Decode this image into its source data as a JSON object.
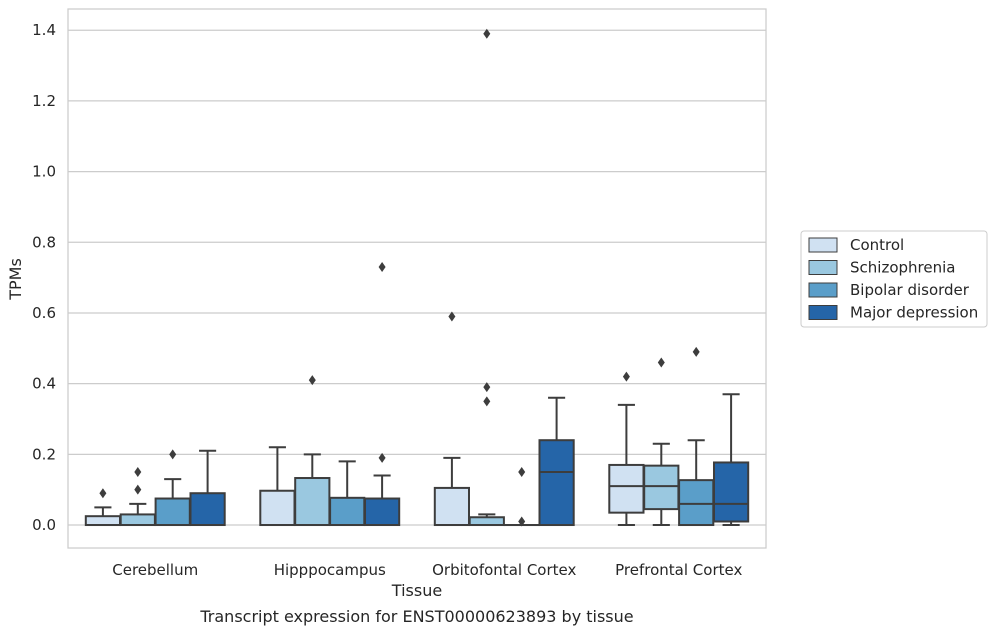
{
  "chart_data": {
    "type": "box",
    "xlabel": "Tissue",
    "ylabel": "TPMs",
    "caption": "Transcript expression for ENST00000623893 by tissue",
    "ylim": [
      -0.065,
      1.46
    ],
    "yticks": [
      0.0,
      0.2,
      0.4,
      0.6,
      0.8,
      1.0,
      1.2,
      1.4
    ],
    "ytick_labels": [
      "0.0",
      "0.2",
      "0.4",
      "0.6",
      "0.8",
      "1.0",
      "1.2",
      "1.4"
    ],
    "grid": true,
    "legend_position": "right, outside plot",
    "categories": [
      "Cerebellum",
      "Hipppocampus",
      "Orbitofontal Cortex",
      "Prefrontal Cortex"
    ],
    "series": [
      {
        "name": "Control",
        "color": "#d0e1f2",
        "boxes": [
          {
            "q1": 0.0,
            "median": 0.0,
            "q3": 0.025,
            "whisker_low": 0.0,
            "whisker_high": 0.05,
            "outliers": [
              0.09
            ]
          },
          {
            "q1": 0.0,
            "median": 0.0,
            "q3": 0.097,
            "whisker_low": 0.0,
            "whisker_high": 0.22,
            "outliers": []
          },
          {
            "q1": 0.0,
            "median": 0.0,
            "q3": 0.105,
            "whisker_low": 0.0,
            "whisker_high": 0.19,
            "outliers": [
              0.59
            ]
          },
          {
            "q1": 0.035,
            "median": 0.11,
            "q3": 0.17,
            "whisker_low": 0.0,
            "whisker_high": 0.34,
            "outliers": [
              0.42
            ]
          }
        ]
      },
      {
        "name": "Schizophrenia",
        "color": "#9ac8e0",
        "boxes": [
          {
            "q1": 0.0,
            "median": 0.0,
            "q3": 0.03,
            "whisker_low": 0.0,
            "whisker_high": 0.06,
            "outliers": [
              0.1,
              0.15
            ]
          },
          {
            "q1": 0.0,
            "median": 0.0,
            "q3": 0.133,
            "whisker_low": 0.0,
            "whisker_high": 0.2,
            "outliers": [
              0.41
            ]
          },
          {
            "q1": 0.0,
            "median": 0.0,
            "q3": 0.022,
            "whisker_low": 0.0,
            "whisker_high": 0.03,
            "outliers": [
              0.35,
              0.39,
              1.39
            ]
          },
          {
            "q1": 0.045,
            "median": 0.11,
            "q3": 0.168,
            "whisker_low": 0.0,
            "whisker_high": 0.23,
            "outliers": [
              0.46
            ]
          }
        ]
      },
      {
        "name": "Bipolar disorder",
        "color": "#5a9ec9",
        "boxes": [
          {
            "q1": 0.0,
            "median": 0.0,
            "q3": 0.075,
            "whisker_low": 0.0,
            "whisker_high": 0.13,
            "outliers": [
              0.2
            ]
          },
          {
            "q1": 0.0,
            "median": 0.0,
            "q3": 0.077,
            "whisker_low": 0.0,
            "whisker_high": 0.18,
            "outliers": []
          },
          {
            "q1": 0.0,
            "median": 0.0,
            "q3": 0.0,
            "whisker_low": 0.0,
            "whisker_high": 0.0,
            "outliers": [
              0.01,
              0.15
            ]
          },
          {
            "q1": 0.0,
            "median": 0.06,
            "q3": 0.127,
            "whisker_low": 0.0,
            "whisker_high": 0.24,
            "outliers": [
              0.49
            ]
          }
        ]
      },
      {
        "name": "Major depression",
        "color": "#2565a8",
        "boxes": [
          {
            "q1": 0.0,
            "median": 0.0,
            "q3": 0.09,
            "whisker_low": 0.0,
            "whisker_high": 0.21,
            "outliers": []
          },
          {
            "q1": 0.0,
            "median": 0.0,
            "q3": 0.075,
            "whisker_low": 0.0,
            "whisker_high": 0.14,
            "outliers": [
              0.19,
              0.73
            ]
          },
          {
            "q1": 0.0,
            "median": 0.15,
            "q3": 0.24,
            "whisker_low": 0.0,
            "whisker_high": 0.36,
            "outliers": []
          },
          {
            "q1": 0.01,
            "median": 0.06,
            "q3": 0.177,
            "whisker_low": 0.0,
            "whisker_high": 0.37,
            "outliers": []
          }
        ]
      }
    ]
  }
}
